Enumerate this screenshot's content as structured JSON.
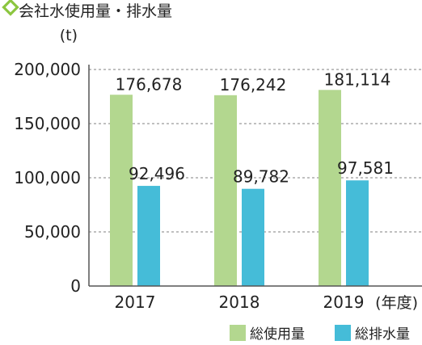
{
  "colors": {
    "series_usage": "#b3d78f",
    "series_discharge": "#45bcd8",
    "title_marker": "#8cc640",
    "grid": "#9a9a9a",
    "text": "#222222"
  },
  "chart_data": {
    "type": "bar",
    "title": "会社水使用量・排水量",
    "y_unit": "(t)",
    "x_unit": "(年度)",
    "categories": [
      "2017",
      "2018",
      "2019"
    ],
    "ylim": [
      0,
      200000
    ],
    "yticks": [
      0,
      50000,
      100000,
      150000,
      200000
    ],
    "ytick_labels": [
      "0",
      "50,000",
      "100,000",
      "150,000",
      "200,000"
    ],
    "grid": "dashed horizontal",
    "legend_position": "bottom-right",
    "series": [
      {
        "name": "総使用量",
        "values": [
          176678,
          176242,
          181114
        ],
        "value_labels": [
          "176,678",
          "176,242",
          "181,114"
        ]
      },
      {
        "name": "総排水量",
        "values": [
          92496,
          89782,
          97581
        ],
        "value_labels": [
          "92,496",
          "89,782",
          "97,581"
        ]
      }
    ]
  }
}
